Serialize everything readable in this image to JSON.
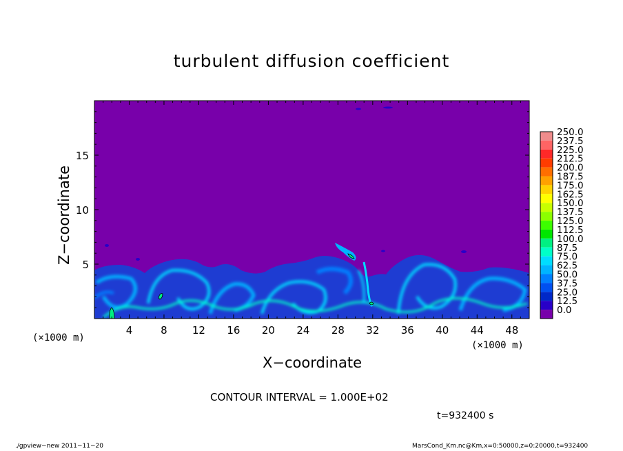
{
  "chart_data": {
    "type": "heatmap",
    "title": "turbulent diffusion coefficient",
    "xlabel": "X−coordinate",
    "ylabel": "Z−coordinate",
    "x_unit_left": "(×1000 m)",
    "x_unit_right": "(×1000 m)",
    "x_ticks": [
      "4",
      "8",
      "12",
      "16",
      "20",
      "24",
      "28",
      "32",
      "36",
      "40",
      "44",
      "48"
    ],
    "y_ticks": [
      "5",
      "10",
      "15"
    ],
    "xlim": [
      0,
      50
    ],
    "ylim": [
      0,
      20
    ],
    "colorbar": {
      "labels": [
        "250.0",
        "237.5",
        "225.0",
        "212.5",
        "200.0",
        "187.5",
        "175.0",
        "162.5",
        "150.0",
        "137.5",
        "125.0",
        "112.5",
        "100.0",
        "87.5",
        "75.0",
        "62.5",
        "50.0",
        "37.5",
        "25.0",
        "12.5",
        "0.0"
      ],
      "colors": [
        "#f08c8c",
        "#ff6464",
        "#ff2828",
        "#ff3c00",
        "#ff6e00",
        "#ffa000",
        "#ffd200",
        "#ffff00",
        "#c8ff00",
        "#8cff00",
        "#3cff00",
        "#00e600",
        "#00f082",
        "#00ffc8",
        "#00dcff",
        "#00b4ff",
        "#0080ff",
        "#0050f0",
        "#0028c8",
        "#2800c8",
        "#7800aa"
      ]
    },
    "contour_interval": "CONTOUR INTERVAL = 1.000E+02",
    "time": "t=932400 s",
    "description_field_background": "#7800aa"
  },
  "footer": {
    "left": "./gpview−new  2011−11−20",
    "right": "MarsCond_Km.nc@Km,x=0:50000,z=0:20000,t=932400"
  }
}
